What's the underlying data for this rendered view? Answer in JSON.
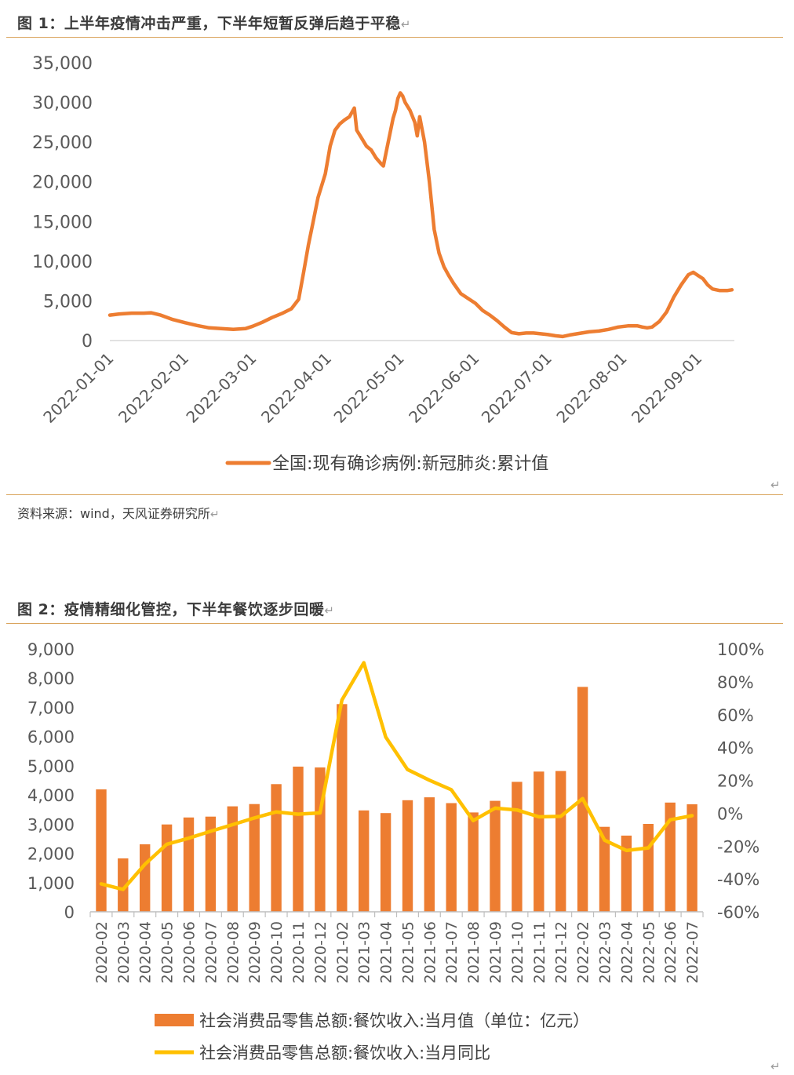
{
  "figure1": {
    "title": "图 1：上半年疫情冲击严重，下半年短暂反弹后趋于平稳",
    "source": "资料来源：wind，天风证券研究所"
  },
  "figure2": {
    "title": "图 2：疫情精细化管控，下半年餐饮逐步回暖"
  },
  "chart_data": [
    {
      "type": "line",
      "title": "",
      "xlabel": "",
      "ylabel": "",
      "ylim": [
        0,
        35000
      ],
      "yticks": [
        "35,000",
        "30,000",
        "25,000",
        "20,000",
        "15,000",
        "10,000",
        "5,000",
        "0"
      ],
      "xticks": [
        "2022-01-01",
        "2022-02-01",
        "2022-03-01",
        "2022-04-01",
        "2022-05-01",
        "2022-06-01",
        "2022-07-01",
        "2022-08-01",
        "2022-09-01"
      ],
      "legend": "bottom",
      "grid": false,
      "color": "#ED7D31",
      "series": [
        {
          "name": "全国:现有确诊病例:新冠肺炎:累计值",
          "points": [
            [
              "2022-01-01",
              3200
            ],
            [
              "2022-01-05",
              3350
            ],
            [
              "2022-01-10",
              3450
            ],
            [
              "2022-01-15",
              3450
            ],
            [
              "2022-01-18",
              3500
            ],
            [
              "2022-01-22",
              3200
            ],
            [
              "2022-01-27",
              2650
            ],
            [
              "2022-02-01",
              2250
            ],
            [
              "2022-02-06",
              1900
            ],
            [
              "2022-02-11",
              1600
            ],
            [
              "2022-02-16",
              1500
            ],
            [
              "2022-02-21",
              1400
            ],
            [
              "2022-02-26",
              1500
            ],
            [
              "2022-03-01",
              1800
            ],
            [
              "2022-03-05",
              2300
            ],
            [
              "2022-03-09",
              2900
            ],
            [
              "2022-03-13",
              3400
            ],
            [
              "2022-03-17",
              4000
            ],
            [
              "2022-03-20",
              5200
            ],
            [
              "2022-03-22",
              8500
            ],
            [
              "2022-03-24",
              12000
            ],
            [
              "2022-03-26",
              15000
            ],
            [
              "2022-03-28",
              18000
            ],
            [
              "2022-03-31",
              21000
            ],
            [
              "2022-04-02",
              24500
            ],
            [
              "2022-04-04",
              26500
            ],
            [
              "2022-04-06",
              27300
            ],
            [
              "2022-04-08",
              27800
            ],
            [
              "2022-04-10",
              28200
            ],
            [
              "2022-04-12",
              29300
            ],
            [
              "2022-04-13",
              26500
            ],
            [
              "2022-04-15",
              25500
            ],
            [
              "2022-04-17",
              24500
            ],
            [
              "2022-04-19",
              24000
            ],
            [
              "2022-04-21",
              23000
            ],
            [
              "2022-04-23",
              22300
            ],
            [
              "2022-04-24",
              22000
            ],
            [
              "2022-04-26",
              25000
            ],
            [
              "2022-04-28",
              28000
            ],
            [
              "2022-04-29",
              29000
            ],
            [
              "2022-04-30",
              30500
            ],
            [
              "2022-05-01",
              31200
            ],
            [
              "2022-05-02",
              30800
            ],
            [
              "2022-05-03",
              30000
            ],
            [
              "2022-05-05",
              29000
            ],
            [
              "2022-05-07",
              27500
            ],
            [
              "2022-05-08",
              25800
            ],
            [
              "2022-05-09",
              28200
            ],
            [
              "2022-05-11",
              25000
            ],
            [
              "2022-05-13",
              20000
            ],
            [
              "2022-05-15",
              14000
            ],
            [
              "2022-05-17",
              11000
            ],
            [
              "2022-05-19",
              9300
            ],
            [
              "2022-05-21",
              8200
            ],
            [
              "2022-05-23",
              7200
            ],
            [
              "2022-05-26",
              5900
            ],
            [
              "2022-05-29",
              5300
            ],
            [
              "2022-06-01",
              4700
            ],
            [
              "2022-06-04",
              3800
            ],
            [
              "2022-06-07",
              3200
            ],
            [
              "2022-06-10",
              2500
            ],
            [
              "2022-06-13",
              1700
            ],
            [
              "2022-06-16",
              1000
            ],
            [
              "2022-06-19",
              850
            ],
            [
              "2022-06-22",
              950
            ],
            [
              "2022-06-25",
              950
            ],
            [
              "2022-06-28",
              850
            ],
            [
              "2022-07-01",
              750
            ],
            [
              "2022-07-04",
              600
            ],
            [
              "2022-07-07",
              500
            ],
            [
              "2022-07-10",
              700
            ],
            [
              "2022-07-14",
              900
            ],
            [
              "2022-07-18",
              1100
            ],
            [
              "2022-07-22",
              1200
            ],
            [
              "2022-07-26",
              1400
            ],
            [
              "2022-07-30",
              1700
            ],
            [
              "2022-08-03",
              1850
            ],
            [
              "2022-08-07",
              1850
            ],
            [
              "2022-08-09",
              1700
            ],
            [
              "2022-08-11",
              1600
            ],
            [
              "2022-08-13",
              1700
            ],
            [
              "2022-08-16",
              2400
            ],
            [
              "2022-08-19",
              3600
            ],
            [
              "2022-08-22",
              5500
            ],
            [
              "2022-08-25",
              7000
            ],
            [
              "2022-08-28",
              8300
            ],
            [
              "2022-08-30",
              8600
            ],
            [
              "2022-09-01",
              8200
            ],
            [
              "2022-09-03",
              7800
            ],
            [
              "2022-09-05",
              7000
            ],
            [
              "2022-09-07",
              6500
            ],
            [
              "2022-09-10",
              6300
            ],
            [
              "2022-09-13",
              6300
            ],
            [
              "2022-09-15",
              6400
            ]
          ]
        }
      ]
    },
    {
      "type": "bar",
      "title": "",
      "xlabel": "",
      "ylabel": "",
      "ylim": [
        0,
        9000
      ],
      "y2lim": [
        -60,
        100
      ],
      "yticks": [
        "9,000",
        "8,000",
        "7,000",
        "6,000",
        "5,000",
        "4,000",
        "3,000",
        "2,000",
        "1,000",
        "0"
      ],
      "y2ticks": [
        "100%",
        "80%",
        "60%",
        "40%",
        "20%",
        "0%",
        "-20%",
        "-40%",
        "-60%"
      ],
      "legend": "bottom",
      "grid": false,
      "categories": [
        "2020-02",
        "2020-03",
        "2020-04",
        "2020-05",
        "2020-06",
        "2020-07",
        "2020-08",
        "2020-09",
        "2020-10",
        "2020-11",
        "2020-12",
        "2021-02",
        "2021-03",
        "2021-04",
        "2021-05",
        "2021-06",
        "2021-07",
        "2021-08",
        "2021-09",
        "2021-10",
        "2021-11",
        "2021-12",
        "2022-02",
        "2022-03",
        "2022-04",
        "2022-05",
        "2022-06",
        "2022-07"
      ],
      "series": [
        {
          "name": "社会消费品零售总额:餐饮收入:当月值（单位：亿元）",
          "type": "bar",
          "axis": "left",
          "color": "#ED7D31",
          "values": [
            4190,
            1830,
            2310,
            2990,
            3230,
            3260,
            3610,
            3690,
            4370,
            4970,
            4940,
            7110,
            3470,
            3380,
            3820,
            3920,
            3720,
            3400,
            3800,
            4450,
            4800,
            4820,
            7700,
            2910,
            2610,
            3010,
            3740,
            3680
          ]
        },
        {
          "name": "社会消费品零售总额:餐饮收入:当月同比",
          "type": "line",
          "axis": "right",
          "color": "#FFC000",
          "values": [
            -43,
            -46.4,
            -31.1,
            -18.9,
            -15.2,
            -11,
            -7,
            -2.9,
            0.8,
            -0.6,
            0.2,
            68.9,
            91.6,
            46.4,
            26.6,
            20.1,
            14.3,
            -4.5,
            3.1,
            2,
            -2.2,
            -1.9,
            8.9,
            -16.4,
            -22.7,
            -21.1,
            -4,
            -1.5
          ]
        }
      ]
    }
  ]
}
